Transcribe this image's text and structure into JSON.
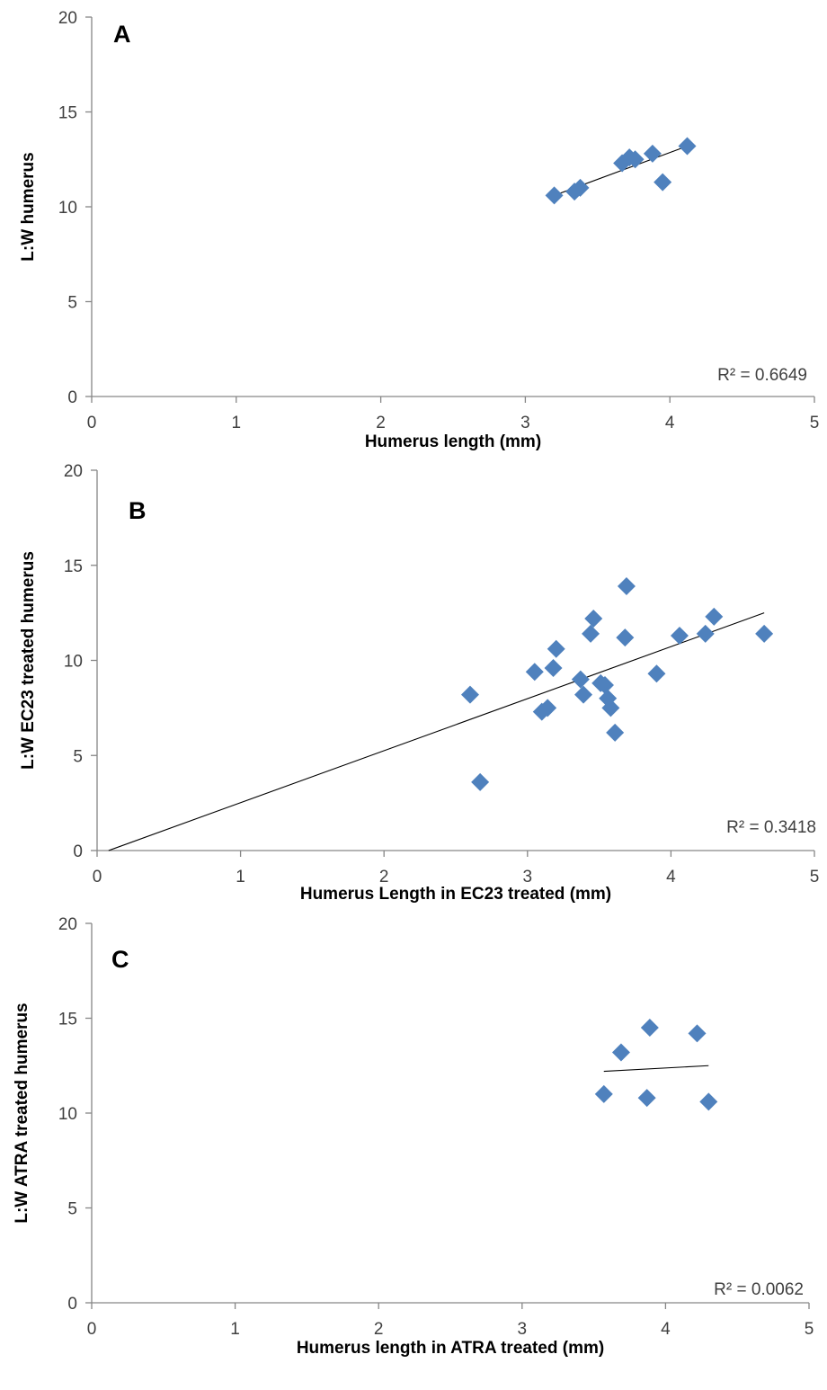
{
  "figure": {
    "colors": {
      "marker": "#4f81bd",
      "axis": "#868686",
      "trendline": "#000000"
    }
  },
  "chart_data": [
    {
      "type": "scatter",
      "panel_label": "A",
      "title": "",
      "xlabel": "Humerus length (mm)",
      "ylabel": "L:W humerus",
      "xlim": [
        0,
        5
      ],
      "ylim": [
        0,
        20
      ],
      "x_ticks": [
        0,
        1,
        2,
        3,
        4,
        5
      ],
      "y_ticks": [
        0,
        5,
        10,
        15,
        20
      ],
      "grid": false,
      "legend": "none",
      "r_squared_label": "R² = 0.6649",
      "trendline": {
        "x": [
          3.2,
          4.12
        ],
        "y": [
          10.6,
          13.2
        ]
      },
      "points": [
        {
          "x": 3.2,
          "y": 10.6
        },
        {
          "x": 3.34,
          "y": 10.8
        },
        {
          "x": 3.38,
          "y": 11.0
        },
        {
          "x": 3.67,
          "y": 12.3
        },
        {
          "x": 3.72,
          "y": 12.6
        },
        {
          "x": 3.76,
          "y": 12.5
        },
        {
          "x": 3.88,
          "y": 12.8
        },
        {
          "x": 3.95,
          "y": 11.3
        },
        {
          "x": 4.12,
          "y": 13.2
        }
      ]
    },
    {
      "type": "scatter",
      "panel_label": "B",
      "title": "",
      "xlabel": "Humerus Length in EC23 treated (mm)",
      "ylabel": "L:W EC23 treated humerus",
      "xlim": [
        0,
        5
      ],
      "ylim": [
        0,
        20
      ],
      "x_ticks": [
        0,
        1,
        2,
        3,
        4,
        5
      ],
      "y_ticks": [
        0,
        5,
        10,
        15,
        20
      ],
      "grid": false,
      "legend": "none",
      "r_squared_label": "R² = 0.3418",
      "trendline": {
        "x": [
          0.08,
          4.65
        ],
        "y": [
          0.0,
          12.5
        ]
      },
      "points": [
        {
          "x": 2.6,
          "y": 8.2
        },
        {
          "x": 2.67,
          "y": 3.6
        },
        {
          "x": 3.05,
          "y": 9.4
        },
        {
          "x": 3.1,
          "y": 7.3
        },
        {
          "x": 3.14,
          "y": 7.5
        },
        {
          "x": 3.18,
          "y": 9.6
        },
        {
          "x": 3.2,
          "y": 10.6
        },
        {
          "x": 3.37,
          "y": 9.0
        },
        {
          "x": 3.39,
          "y": 8.2
        },
        {
          "x": 3.44,
          "y": 11.4
        },
        {
          "x": 3.46,
          "y": 12.2
        },
        {
          "x": 3.51,
          "y": 8.8
        },
        {
          "x": 3.54,
          "y": 8.7
        },
        {
          "x": 3.56,
          "y": 8.0
        },
        {
          "x": 3.58,
          "y": 7.5
        },
        {
          "x": 3.61,
          "y": 6.2
        },
        {
          "x": 3.68,
          "y": 11.2
        },
        {
          "x": 3.69,
          "y": 13.9
        },
        {
          "x": 3.9,
          "y": 9.3
        },
        {
          "x": 4.06,
          "y": 11.3
        },
        {
          "x": 4.24,
          "y": 11.4
        },
        {
          "x": 4.3,
          "y": 12.3
        },
        {
          "x": 4.65,
          "y": 11.4
        }
      ]
    },
    {
      "type": "scatter",
      "panel_label": "C",
      "title": "",
      "xlabel": "Humerus length in ATRA treated (mm)",
      "ylabel": "L:W ATRA treated humerus",
      "xlim": [
        0,
        5
      ],
      "ylim": [
        0,
        20
      ],
      "x_ticks": [
        0,
        1,
        2,
        3,
        4,
        5
      ],
      "y_ticks": [
        0,
        5,
        10,
        15,
        20
      ],
      "grid": false,
      "legend": "none",
      "r_squared_label": "R² = 0.0062",
      "trendline": {
        "x": [
          3.57,
          4.3
        ],
        "y": [
          12.2,
          12.5
        ]
      },
      "points": [
        {
          "x": 3.57,
          "y": 11.0
        },
        {
          "x": 3.69,
          "y": 13.2
        },
        {
          "x": 3.87,
          "y": 10.8
        },
        {
          "x": 3.89,
          "y": 14.5
        },
        {
          "x": 4.22,
          "y": 14.2
        },
        {
          "x": 4.3,
          "y": 10.6
        }
      ]
    }
  ]
}
